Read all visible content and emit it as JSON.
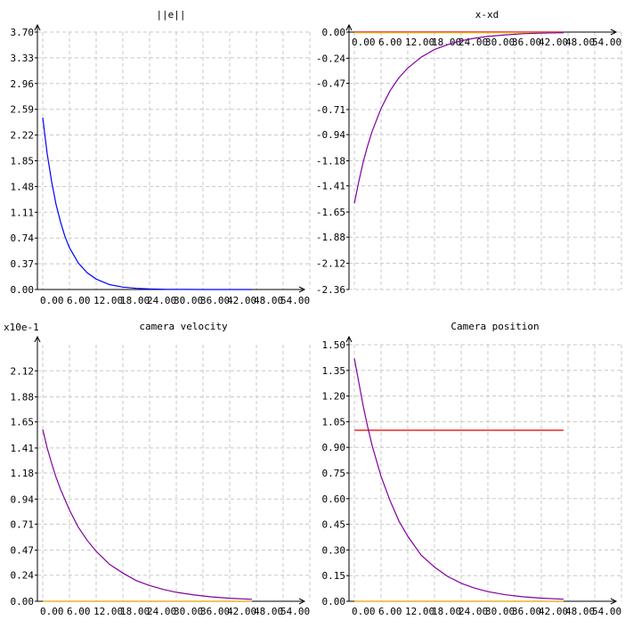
{
  "colors": {
    "background": "#ffffff",
    "grid": "#c8c8c8",
    "axis": "#000000",
    "blue": "#0000ff",
    "purple": "#8000a0",
    "red": "#e00000",
    "orange": "#e8a000"
  },
  "chart_data": [
    {
      "type": "line",
      "title": "||e||",
      "axis_exponent_label": "",
      "xlabel": "",
      "ylabel": "",
      "xlim": [
        0,
        59
      ],
      "ylim": [
        0,
        3.7
      ],
      "xticks": [
        "0.00",
        "6.00",
        "12.00",
        "18.00",
        "24.00",
        "30.00",
        "36.00",
        "42.00",
        "48.00",
        "54.00"
      ],
      "yticks": [
        "0.00",
        "0.37",
        "0.74",
        "1.11",
        "1.48",
        "1.85",
        "2.22",
        "2.59",
        "2.96",
        "3.33",
        "3.70"
      ],
      "grid": true,
      "series": [
        {
          "color": "#0000ff",
          "x": [
            0,
            1,
            2,
            3,
            4,
            5,
            6,
            8,
            10,
            12,
            15,
            18,
            21,
            24,
            28,
            32,
            36,
            40,
            44,
            47
          ],
          "y": [
            2.47,
            1.95,
            1.55,
            1.22,
            0.97,
            0.76,
            0.6,
            0.38,
            0.24,
            0.15,
            0.07,
            0.035,
            0.017,
            0.008,
            0.003,
            0.001,
            0.0005,
            0.0002,
            0.0001,
            0.0
          ]
        }
      ]
    },
    {
      "type": "line",
      "title": "x-xd",
      "axis_exponent_label": "",
      "xlabel": "",
      "ylabel": "",
      "xlim": [
        0,
        59
      ],
      "ylim": [
        -2.36,
        0
      ],
      "xticks": [
        "0.00",
        "6.00",
        "12.00",
        "18.00",
        "24.00",
        "30.00",
        "36.00",
        "42.00",
        "48.00",
        "54.00"
      ],
      "yticks": [
        "-2.36",
        "-2.12",
        "-1.88",
        "-1.65",
        "-1.41",
        "-1.18",
        "-0.94",
        "-0.71",
        "-0.47",
        "-0.24",
        "0.00"
      ],
      "grid": true,
      "series": [
        {
          "color": "#e00000",
          "x": [
            0,
            47
          ],
          "y": [
            0.0,
            0.0
          ]
        },
        {
          "color": "#e8a000",
          "x": [
            0,
            47
          ],
          "y": [
            -0.005,
            -0.005
          ]
        },
        {
          "color": "#8000a0",
          "x": [
            0,
            1,
            2,
            3,
            4,
            6,
            8,
            10,
            12,
            15,
            18,
            21,
            24,
            27,
            30,
            34,
            38,
            42,
            47
          ],
          "y": [
            -1.57,
            -1.37,
            -1.19,
            -1.04,
            -0.91,
            -0.7,
            -0.54,
            -0.42,
            -0.33,
            -0.23,
            -0.16,
            -0.115,
            -0.08,
            -0.056,
            -0.04,
            -0.025,
            -0.015,
            -0.009,
            -0.005
          ]
        }
      ]
    },
    {
      "type": "line",
      "title": "camera velocity",
      "axis_exponent_label": "x10e-1",
      "xlabel": "",
      "ylabel": "",
      "xlim": [
        0,
        59
      ],
      "ylim": [
        0,
        2.36
      ],
      "xticks": [
        "0.00",
        "6.00",
        "12.00",
        "18.00",
        "24.00",
        "30.00",
        "36.00",
        "42.00",
        "48.00",
        "54.00"
      ],
      "yticks": [
        "0.00",
        "0.24",
        "0.47",
        "0.71",
        "0.94",
        "1.18",
        "1.41",
        "1.65",
        "1.88",
        "2.12"
      ],
      "grid": true,
      "series": [
        {
          "color": "#e8a000",
          "x": [
            0,
            47
          ],
          "y": [
            0.0,
            0.0
          ]
        },
        {
          "color": "#8000a0",
          "x": [
            0,
            1,
            2,
            3,
            4,
            6,
            8,
            10,
            12,
            15,
            18,
            21,
            24,
            27,
            30,
            34,
            38,
            42,
            47
          ],
          "y": [
            1.58,
            1.41,
            1.27,
            1.14,
            1.03,
            0.84,
            0.68,
            0.56,
            0.46,
            0.34,
            0.26,
            0.19,
            0.145,
            0.11,
            0.083,
            0.058,
            0.04,
            0.028,
            0.018
          ]
        }
      ]
    },
    {
      "type": "line",
      "title": "Camera position",
      "axis_exponent_label": "",
      "xlabel": "",
      "ylabel": "",
      "xlim": [
        0,
        59
      ],
      "ylim": [
        0,
        1.5
      ],
      "xticks": [
        "0.00",
        "6.00",
        "12.00",
        "18.00",
        "24.00",
        "30.00",
        "36.00",
        "42.00",
        "48.00",
        "54.00"
      ],
      "yticks": [
        "0.00",
        "0.15",
        "0.30",
        "0.45",
        "0.60",
        "0.75",
        "0.90",
        "1.05",
        "1.20",
        "1.35",
        "1.50"
      ],
      "grid": true,
      "series": [
        {
          "color": "#e00000",
          "x": [
            0,
            47
          ],
          "y": [
            1.0,
            1.0
          ]
        },
        {
          "color": "#e8a000",
          "x": [
            0,
            47
          ],
          "y": [
            0.0,
            0.0
          ]
        },
        {
          "color": "#8000a0",
          "x": [
            0,
            1,
            2,
            3,
            4,
            6,
            8,
            10,
            12,
            15,
            18,
            21,
            24,
            27,
            30,
            34,
            38,
            42,
            47
          ],
          "y": [
            1.42,
            1.28,
            1.14,
            1.02,
            0.91,
            0.73,
            0.59,
            0.47,
            0.38,
            0.27,
            0.2,
            0.145,
            0.105,
            0.077,
            0.056,
            0.038,
            0.026,
            0.018,
            0.012
          ]
        }
      ]
    }
  ]
}
